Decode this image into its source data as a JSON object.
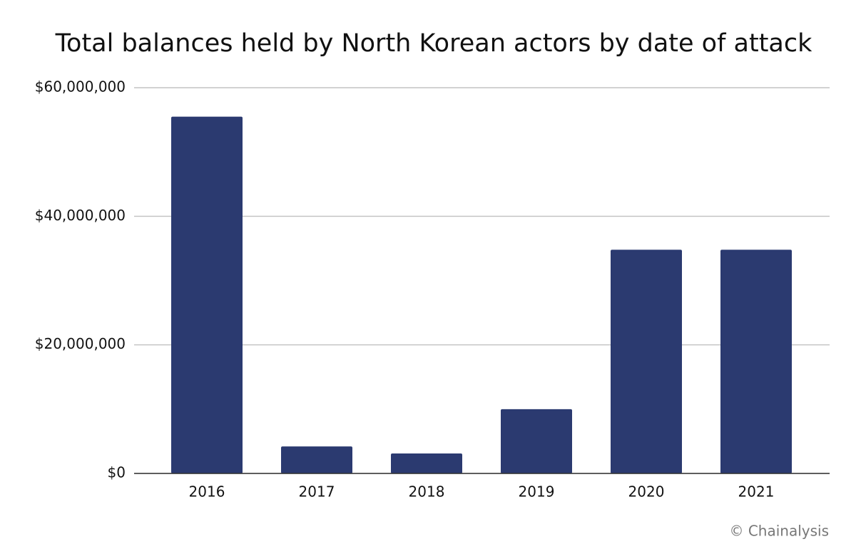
{
  "chart_data": {
    "type": "bar",
    "title": "Total balances held by North Korean actors by date of attack",
    "categories": [
      "2016",
      "2017",
      "2018",
      "2019",
      "2020",
      "2021"
    ],
    "values": [
      55500000,
      4200000,
      3100000,
      10000000,
      34800000,
      34800000
    ],
    "color": "#2b3a70",
    "ylim": [
      0,
      60000000
    ],
    "yticks": [
      {
        "value": 0,
        "label": "$0"
      },
      {
        "value": 20000000,
        "label": "$20,000,000"
      },
      {
        "value": 40000000,
        "label": "$40,000,000"
      },
      {
        "value": 60000000,
        "label": "$60,000,000"
      }
    ],
    "grid": true,
    "source": "© Chainalysis"
  }
}
